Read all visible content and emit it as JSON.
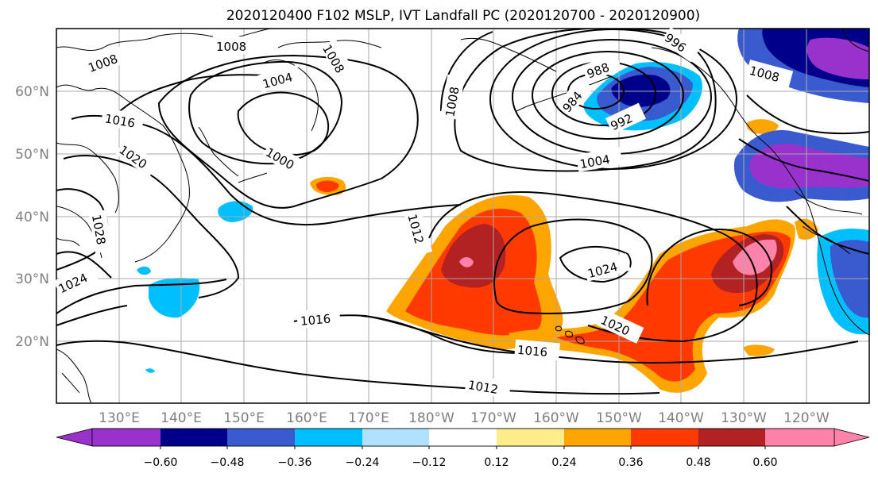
{
  "title": "2020120400 F102 MSLP, IVT Landfall PC (2020120700 - 2020120900)",
  "lon_labels": [
    "130°E",
    "140°E",
    "150°E",
    "160°E",
    "170°E",
    "180°W",
    "170°W",
    "160°W",
    "150°W",
    "140°W",
    "130°W",
    "120°W"
  ],
  "lat_labels": [
    "20°N",
    "30°N",
    "40°N",
    "50°N",
    "60°N"
  ],
  "colorbar": {
    "colors": [
      "#9932cc",
      "#00008b",
      "#3a5bd0",
      "#00bfff",
      "#b0e2ff",
      "#ffffff",
      "#ffec8b",
      "#ffa500",
      "#ff3a00",
      "#b22222",
      "#ff82ab"
    ],
    "tick_labels": [
      "−0.60",
      "−0.48",
      "−0.36",
      "−0.24",
      "−0.12",
      "0.12",
      "0.24",
      "0.36",
      "0.48",
      "0.60"
    ]
  },
  "isobar_labels": [
    "1008",
    "1008",
    "1008",
    "1004",
    "1016",
    "1020",
    "1000",
    "1028",
    "1024",
    "1016",
    "1012",
    "1008",
    "988",
    "984",
    "992",
    "996",
    "1004",
    "1024",
    "1020",
    "1016",
    "1012",
    "1008"
  ]
}
